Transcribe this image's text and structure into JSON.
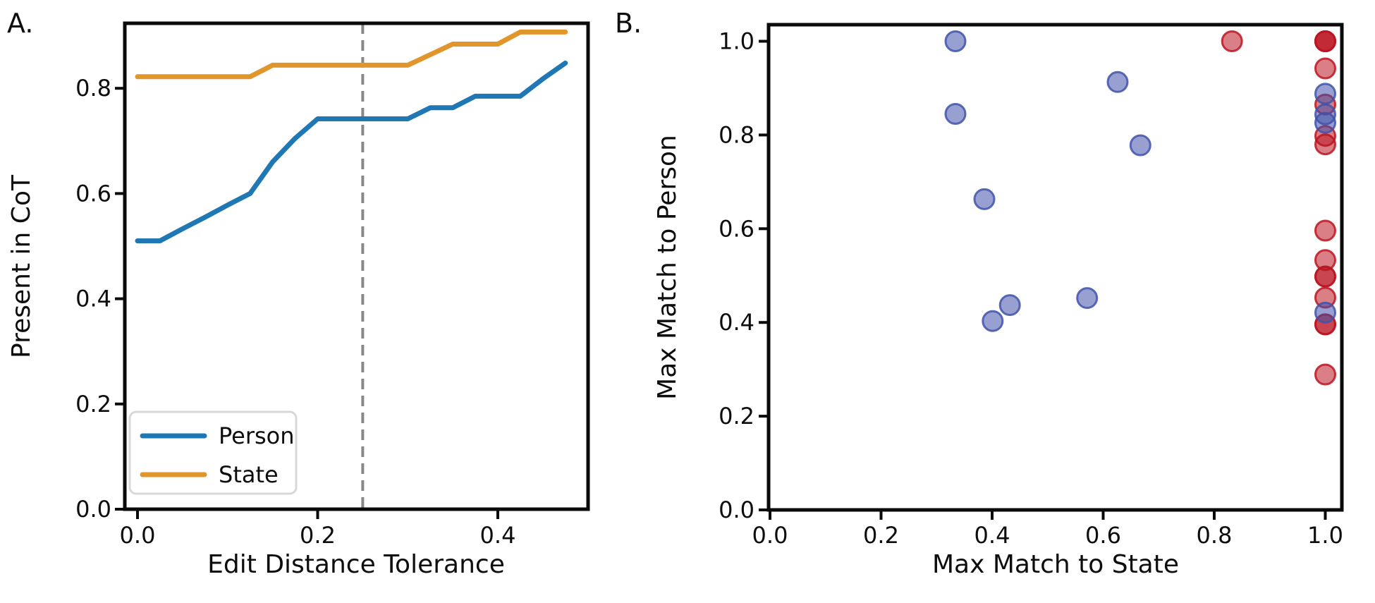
{
  "figure": {
    "panel_a": {
      "label": "A.",
      "xlabel": "Edit Distance Tolerance",
      "ylabel": "Present in CoT",
      "legend": [
        "Person",
        "State"
      ]
    },
    "panel_b": {
      "label": "B.",
      "xlabel": "Max Match to State",
      "ylabel": "Max Match to Person"
    }
  },
  "colors": {
    "person": "#1F77B4",
    "state": "#E0962B",
    "vline": "#888888",
    "scatter_blue": "#4152AA",
    "scatter_red": "#BB1523",
    "spine": "#0a0a0a",
    "legend_border": "#D8D8D8"
  },
  "chart_data": [
    {
      "type": "line",
      "title": "",
      "xlabel": "Edit Distance Tolerance",
      "ylabel": "Present in CoT",
      "xlim": [
        -0.014,
        0.5
      ],
      "ylim": [
        0.0,
        0.924
      ],
      "x_ticks": [
        0.0,
        0.2,
        0.4
      ],
      "y_ticks": [
        0.0,
        0.2,
        0.4,
        0.6,
        0.8
      ],
      "grid": false,
      "legend_position": "lower left",
      "vline": {
        "x": 0.25,
        "style": "dashed",
        "color": "#888888"
      },
      "x": [
        0.0,
        0.025,
        0.05,
        0.075,
        0.1,
        0.125,
        0.15,
        0.175,
        0.2,
        0.225,
        0.25,
        0.275,
        0.3,
        0.325,
        0.35,
        0.375,
        0.4,
        0.425,
        0.45,
        0.475
      ],
      "series": [
        {
          "name": "Person",
          "color": "#1F77B4",
          "values": [
            0.51,
            0.51,
            0.533,
            0.555,
            0.578,
            0.6,
            0.66,
            0.705,
            0.742,
            0.742,
            0.742,
            0.742,
            0.742,
            0.763,
            0.763,
            0.785,
            0.785,
            0.785,
            0.818,
            0.848
          ]
        },
        {
          "name": "State",
          "color": "#E0962B",
          "values": [
            0.822,
            0.822,
            0.822,
            0.822,
            0.822,
            0.822,
            0.844,
            0.844,
            0.844,
            0.844,
            0.844,
            0.844,
            0.844,
            0.864,
            0.884,
            0.884,
            0.884,
            0.907,
            0.907,
            0.907
          ]
        }
      ]
    },
    {
      "type": "scatter",
      "title": "",
      "xlabel": "Max Match to State",
      "ylabel": "Max Match to Person",
      "xlim": [
        -0.003,
        1.03
      ],
      "ylim": [
        0.0,
        1.035
      ],
      "x_ticks": [
        0.0,
        0.2,
        0.4,
        0.6,
        0.8,
        1.0
      ],
      "y_ticks": [
        0.0,
        0.2,
        0.4,
        0.6,
        0.8,
        1.0
      ],
      "grid": false,
      "marker_radius_px": 14,
      "series": [
        {
          "color_name": "red",
          "color": "#BB1523",
          "points": [
            [
              0.832,
              1.0,
              1
            ],
            [
              1.0,
              1.0,
              3
            ],
            [
              1.0,
              0.942,
              1
            ],
            [
              1.0,
              0.865,
              1
            ],
            [
              1.0,
              0.798,
              1
            ],
            [
              1.0,
              0.78,
              1
            ],
            [
              1.0,
              0.596,
              1
            ],
            [
              1.0,
              0.533,
              1
            ],
            [
              1.0,
              0.498,
              2
            ],
            [
              1.0,
              0.453,
              1
            ],
            [
              1.0,
              0.396,
              2
            ],
            [
              1.0,
              0.289,
              1
            ]
          ]
        },
        {
          "color_name": "blue",
          "color": "#4152AA",
          "points": [
            [
              0.334,
              1.0,
              1
            ],
            [
              0.334,
              0.845,
              1
            ],
            [
              0.386,
              0.663,
              1
            ],
            [
              0.432,
              0.437,
              1
            ],
            [
              0.401,
              0.403,
              1
            ],
            [
              0.571,
              0.452,
              1
            ],
            [
              0.626,
              0.913,
              1
            ],
            [
              0.667,
              0.778,
              1
            ],
            [
              1.0,
              0.888,
              1
            ],
            [
              1.0,
              0.844,
              1
            ],
            [
              1.0,
              0.826,
              1
            ],
            [
              1.0,
              0.421,
              1
            ]
          ]
        }
      ]
    }
  ]
}
